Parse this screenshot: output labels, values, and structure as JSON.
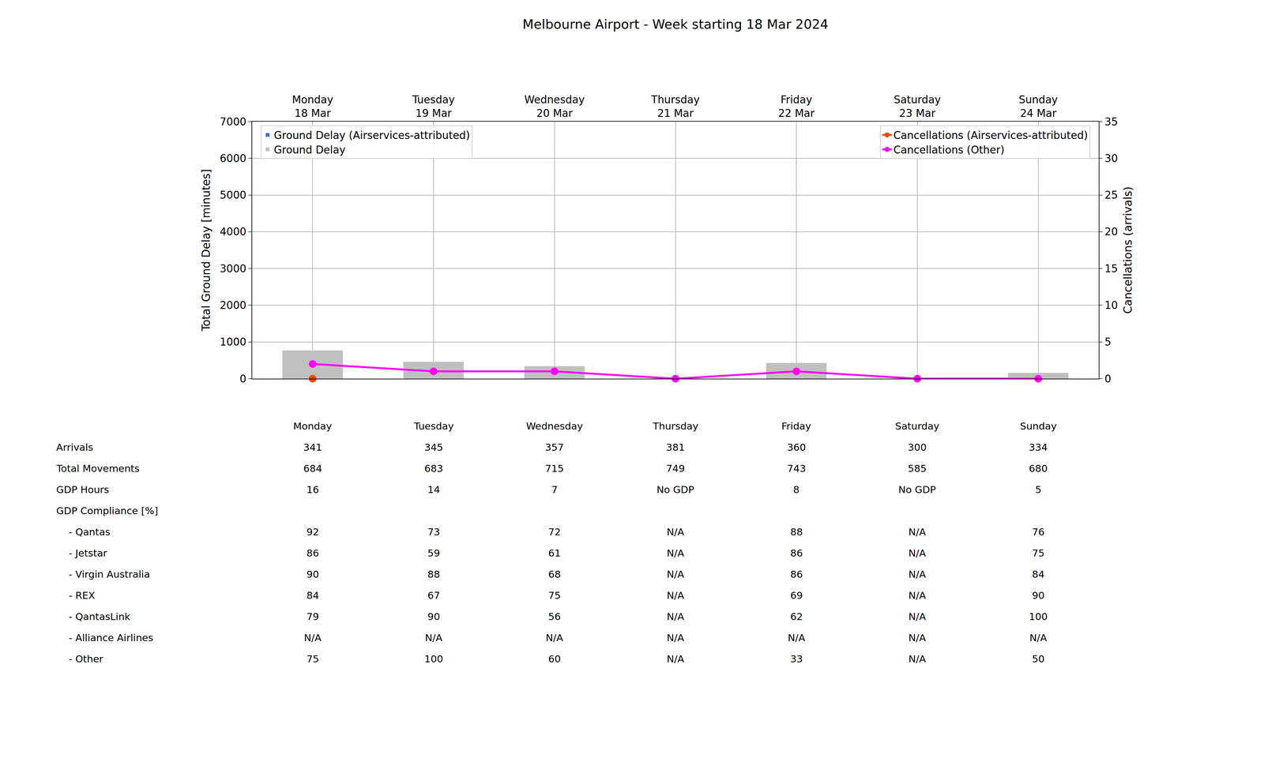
{
  "chart_data": {
    "type": "bar",
    "title": "Melbourne Airport - Week starting 18 Mar 2024",
    "categories": [
      "Monday\n18 Mar",
      "Tuesday\n19 Mar",
      "Wednesday\n20 Mar",
      "Thursday\n21 Mar",
      "Friday\n22 Mar",
      "Saturday\n23 Mar",
      "Sunday\n24 Mar"
    ],
    "series": [
      {
        "name": "Ground Delay (Airservices-attributed)",
        "type": "bar",
        "color": "#4169e1",
        "values": [
          0,
          0,
          0,
          0,
          0,
          0,
          0
        ]
      },
      {
        "name": "Ground Delay",
        "type": "bar",
        "color": "#c0c0c0",
        "values": [
          770,
          460,
          340,
          0,
          430,
          0,
          160
        ]
      },
      {
        "name": "Cancellations (Airservices-attributed)",
        "type": "line",
        "axis": "y2",
        "color": "#ff4500",
        "marker": "circle",
        "values": [
          0,
          null,
          null,
          null,
          null,
          null,
          null
        ]
      },
      {
        "name": "Cancellations (Other)",
        "type": "line",
        "axis": "y2",
        "color": "#ff00ff",
        "marker": "circle",
        "values": [
          2,
          1,
          1,
          0,
          1,
          0,
          0
        ]
      }
    ],
    "ylabel": "Total Ground Delay [minutes]",
    "y2label": "Cancellations (arrivals)",
    "ylim": [
      0,
      7000
    ],
    "yticks": [
      0,
      1000,
      2000,
      3000,
      4000,
      5000,
      6000,
      7000
    ],
    "y2lim": [
      0,
      35
    ],
    "y2ticks": [
      0,
      5,
      10,
      15,
      20,
      25,
      30,
      35
    ],
    "grid": true
  },
  "table": {
    "columns": [
      "Monday",
      "Tuesday",
      "Wednesday",
      "Thursday",
      "Friday",
      "Saturday",
      "Sunday"
    ],
    "rows": [
      {
        "label": "Arrivals",
        "values": [
          341,
          345,
          357,
          381,
          360,
          300,
          334
        ]
      },
      {
        "label": "Total Movements",
        "values": [
          684,
          683,
          715,
          749,
          743,
          585,
          680
        ]
      },
      {
        "label": "GDP Hours",
        "values": [
          16,
          14,
          7,
          "No GDP",
          8,
          "No GDP",
          5
        ]
      },
      {
        "label": "GDP Compliance [%]",
        "values": []
      },
      {
        "label": "  - Qantas",
        "values": [
          92,
          73,
          72,
          "N/A",
          88,
          "N/A",
          76
        ]
      },
      {
        "label": "  - Jetstar",
        "values": [
          86,
          59,
          61,
          "N/A",
          86,
          "N/A",
          75
        ]
      },
      {
        "label": "  - Virgin Australia",
        "values": [
          90,
          88,
          68,
          "N/A",
          86,
          "N/A",
          84
        ]
      },
      {
        "label": "  - REX",
        "values": [
          84,
          67,
          75,
          "N/A",
          69,
          "N/A",
          90
        ]
      },
      {
        "label": "  - QantasLink",
        "values": [
          79,
          90,
          56,
          "N/A",
          62,
          "N/A",
          100
        ]
      },
      {
        "label": "  - Alliance Airlines",
        "values": [
          "N/A",
          "N/A",
          "N/A",
          "N/A",
          "N/A",
          "N/A",
          "N/A"
        ]
      },
      {
        "label": "  - Other",
        "values": [
          75,
          100,
          60,
          "N/A",
          33,
          "N/A",
          50
        ]
      }
    ]
  }
}
